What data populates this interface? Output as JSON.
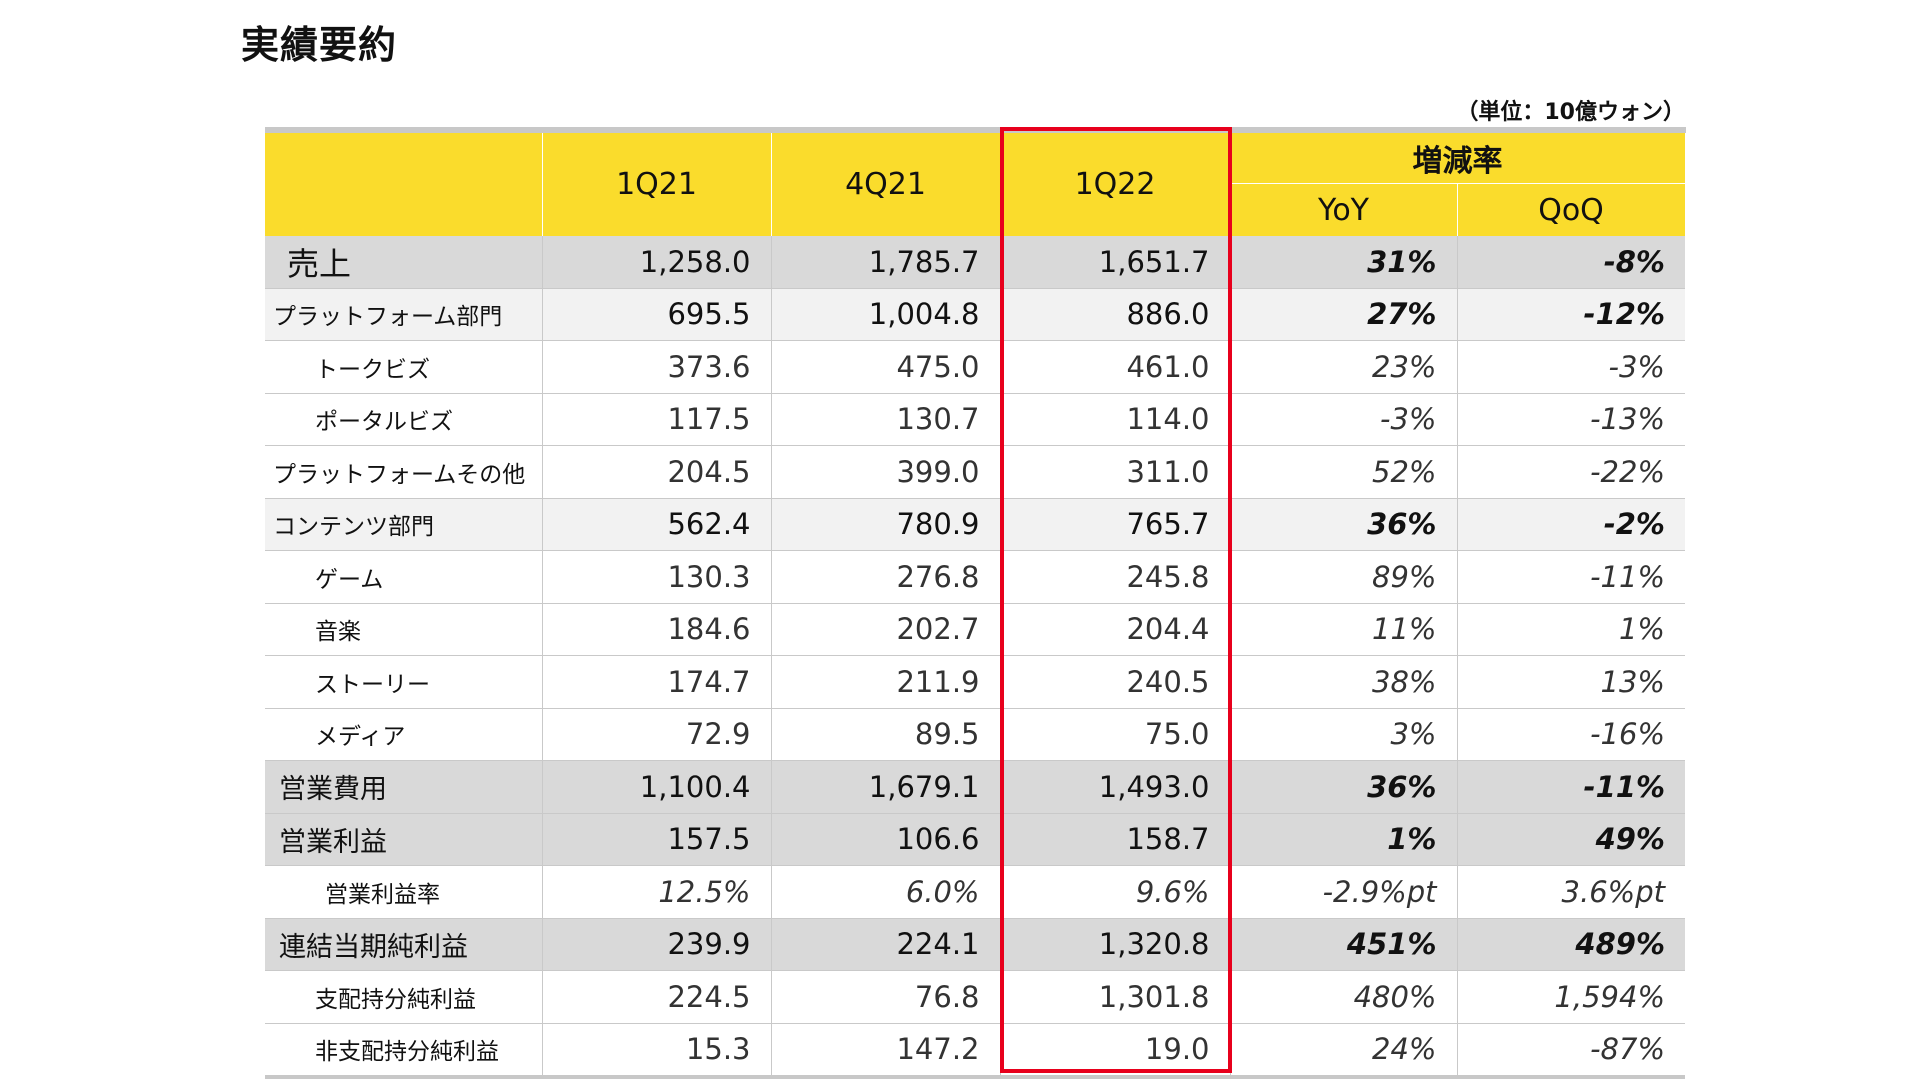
{
  "page": {
    "title": "実績要約",
    "unit_note": "（単位：10億ウォン）"
  },
  "header": {
    "periods": [
      "1Q21",
      "4Q21",
      "1Q22"
    ],
    "change_group": "増減率",
    "change_cols": [
      "YoY",
      "QoQ"
    ]
  },
  "rows": [
    {
      "label": "売上",
      "values": [
        "1,258.0",
        "1,785.7",
        "1,651.7"
      ],
      "yoy": "31%",
      "qoq": "-8%"
    },
    {
      "label": "プラットフォーム部門",
      "values": [
        "695.5",
        "1,004.8",
        "886.0"
      ],
      "yoy": "27%",
      "qoq": "-12%"
    },
    {
      "label": "トークビズ",
      "values": [
        "373.6",
        "475.0",
        "461.0"
      ],
      "yoy": "23%",
      "qoq": "-3%"
    },
    {
      "label": "ポータルビズ",
      "values": [
        "117.5",
        "130.7",
        "114.0"
      ],
      "yoy": "-3%",
      "qoq": "-13%"
    },
    {
      "label": "プラットフォームその他",
      "values": [
        "204.5",
        "399.0",
        "311.0"
      ],
      "yoy": "52%",
      "qoq": "-22%"
    },
    {
      "label": "コンテンツ部門",
      "values": [
        "562.4",
        "780.9",
        "765.7"
      ],
      "yoy": "36%",
      "qoq": "-2%"
    },
    {
      "label": "ゲーム",
      "values": [
        "130.3",
        "276.8",
        "245.8"
      ],
      "yoy": "89%",
      "qoq": "-11%"
    },
    {
      "label": "音楽",
      "values": [
        "184.6",
        "202.7",
        "204.4"
      ],
      "yoy": "11%",
      "qoq": "1%"
    },
    {
      "label": "ストーリー",
      "values": [
        "174.7",
        "211.9",
        "240.5"
      ],
      "yoy": "38%",
      "qoq": "13%"
    },
    {
      "label": "メディア",
      "values": [
        "72.9",
        "89.5",
        "75.0"
      ],
      "yoy": "3%",
      "qoq": "-16%"
    },
    {
      "label": "営業費用",
      "values": [
        "1,100.4",
        "1,679.1",
        "1,493.0"
      ],
      "yoy": "36%",
      "qoq": "-11%"
    },
    {
      "label": "営業利益",
      "values": [
        "157.5",
        "106.6",
        "158.7"
      ],
      "yoy": "1%",
      "qoq": "49%"
    },
    {
      "label": "営業利益率",
      "values": [
        "12.5%",
        "6.0%",
        "9.6%"
      ],
      "yoy": "-2.9%pt",
      "qoq": "3.6%pt"
    },
    {
      "label": "連結当期純利益",
      "values": [
        "239.9",
        "224.1",
        "1,320.8"
      ],
      "yoy": "451%",
      "qoq": "489%"
    },
    {
      "label": "支配持分純利益",
      "values": [
        "224.5",
        "76.8",
        "1,301.8"
      ],
      "yoy": "480%",
      "qoq": "1,594%"
    },
    {
      "label": "非支配持分純利益",
      "values": [
        "15.3",
        "147.2",
        "19.0"
      ],
      "yoy": "24%",
      "qoq": "-87%"
    }
  ],
  "colors": {
    "header_yellow": "#fadc2c",
    "major_row_gray": "#d9d9d9",
    "segment_row_gray": "#f2f2f2",
    "highlight_red": "#e8001c"
  }
}
